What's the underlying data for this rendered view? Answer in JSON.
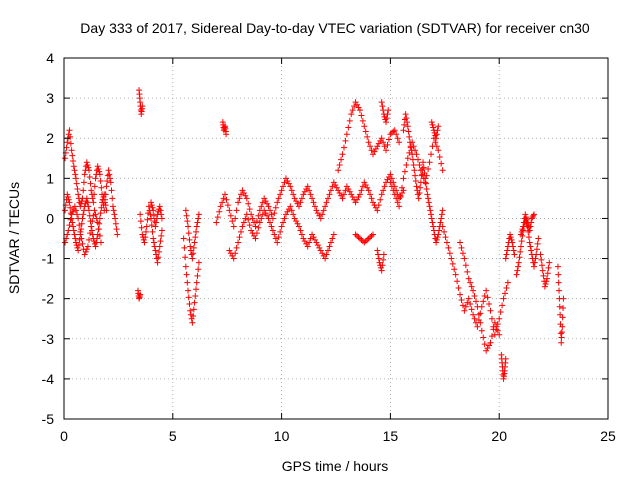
{
  "chart_data": {
    "type": "scatter",
    "title": "Day 333 of 2017, Sidereal Day-to-day VTEC variation (SDTVAR) for receiver cn30",
    "xlabel": "GPS time / hours",
    "ylabel": "SDTVAR / TECUs",
    "xlim": [
      0,
      25
    ],
    "ylim": [
      -5,
      4
    ],
    "xticks": [
      "0",
      "5",
      "10",
      "15",
      "20",
      "25"
    ],
    "yticks": [
      "-5",
      "-4",
      "-3",
      "-2",
      "-1",
      "0",
      "1",
      "2",
      "3",
      "4"
    ],
    "grid": true,
    "marker": "plus",
    "color": "#ff0000",
    "series": [
      {
        "name": "SDTVAR",
        "segments": [
          {
            "x": [
              0.05,
              0.15,
              0.25,
              0.35,
              0.45,
              0.55,
              0.65,
              0.75,
              0.85,
              0.95,
              1.05,
              1.15,
              1.25,
              1.35,
              1.45,
              1.55,
              1.65,
              1.75,
              1.85,
              1.95,
              2.05,
              2.15,
              2.25,
              2.35,
              2.45
            ],
            "y": [
              1.5,
              1.9,
              2.2,
              1.7,
              1.3,
              1.0,
              0.6,
              0.3,
              0.5,
              1.1,
              1.4,
              1.2,
              0.7,
              0.4,
              1.0,
              1.3,
              1.1,
              0.6,
              0.2,
              0.8,
              1.2,
              0.9,
              0.3,
              0.0,
              -0.4
            ]
          },
          {
            "x": [
              0.05,
              0.15,
              0.25,
              0.35,
              0.45,
              0.55,
              0.65,
              0.75,
              0.85,
              0.95,
              1.05,
              1.15,
              1.25,
              1.35,
              1.45,
              1.55,
              1.65,
              1.75,
              1.85,
              1.95
            ],
            "y": [
              0.2,
              0.6,
              0.4,
              0.0,
              -0.3,
              -0.6,
              -0.8,
              -0.4,
              0.0,
              0.3,
              0.5,
              0.2,
              -0.2,
              -0.5,
              -0.7,
              -0.4,
              0.0,
              0.4,
              0.6,
              0.2
            ]
          },
          {
            "x": [
              0.05,
              0.2,
              0.35,
              0.5,
              0.65,
              0.8,
              0.95,
              1.1,
              1.25,
              1.4,
              1.55,
              1.7
            ],
            "y": [
              -0.6,
              -0.3,
              0.1,
              0.3,
              0.0,
              -0.5,
              -0.9,
              -0.7,
              -0.2,
              0.2,
              -0.1,
              -0.6
            ]
          },
          {
            "x": [
              3.45,
              3.5,
              3.55,
              3.6
            ],
            "y": [
              3.2,
              2.9,
              2.6,
              2.8
            ]
          },
          {
            "x": [
              3.4,
              3.45,
              3.5
            ],
            "y": [
              -1.8,
              -2.0,
              -1.9
            ]
          },
          {
            "x": [
              3.5,
              3.6,
              3.7,
              3.8,
              3.9,
              4.0,
              4.1,
              4.2,
              4.3,
              4.4,
              4.5
            ],
            "y": [
              0.1,
              -0.4,
              -0.6,
              -0.2,
              0.3,
              0.0,
              -0.5,
              -0.8,
              -1.1,
              -0.7,
              -0.3
            ]
          },
          {
            "x": [
              4.0,
              4.1,
              4.2,
              4.3,
              4.4,
              4.5
            ],
            "y": [
              0.4,
              0.2,
              -0.2,
              0.1,
              0.3,
              0.0
            ]
          },
          {
            "x": [
              5.5,
              5.6,
              5.7,
              5.8,
              5.9,
              6.0,
              6.1,
              6.2
            ],
            "y": [
              -0.5,
              -1.2,
              -1.8,
              -2.3,
              -2.6,
              -2.1,
              -1.6,
              -1.1
            ]
          },
          {
            "x": [
              5.6,
              5.7,
              5.8,
              5.9,
              6.0,
              6.1,
              6.2
            ],
            "y": [
              0.2,
              -0.2,
              -0.7,
              -1.0,
              -0.6,
              -0.2,
              0.1
            ]
          },
          {
            "x": [
              7.3,
              7.35,
              7.4,
              7.45
            ],
            "y": [
              2.4,
              2.2,
              2.3,
              2.1
            ]
          },
          {
            "x": [
              7.0,
              7.2,
              7.4,
              7.6,
              7.8,
              8.0,
              8.2,
              8.4,
              8.6,
              8.8,
              9.0,
              9.2,
              9.4,
              9.6,
              9.8,
              10.0,
              10.2,
              10.4,
              10.6,
              10.8,
              11.0,
              11.2,
              11.4,
              11.6,
              11.8,
              12.0,
              12.2,
              12.4,
              12.6,
              12.8,
              13.0,
              13.2,
              13.4,
              13.6,
              13.8,
              14.0,
              14.2,
              14.4,
              14.6,
              14.8,
              15.0,
              15.2,
              15.4,
              15.6
            ],
            "y": [
              -0.1,
              0.3,
              0.6,
              0.2,
              -0.2,
              0.4,
              0.7,
              0.5,
              0.1,
              -0.2,
              0.2,
              0.5,
              0.3,
              0.0,
              0.4,
              0.7,
              1.0,
              0.8,
              0.5,
              0.3,
              0.6,
              0.8,
              0.5,
              0.2,
              0.0,
              0.3,
              0.6,
              0.9,
              0.7,
              0.5,
              0.8,
              0.6,
              0.4,
              0.6,
              0.9,
              0.7,
              0.4,
              0.2,
              0.6,
              0.9,
              1.1,
              0.8,
              0.5,
              0.7
            ]
          },
          {
            "x": [
              7.6,
              7.8,
              8.0,
              8.2,
              8.4,
              8.6,
              8.8,
              9.0,
              9.2,
              9.4,
              9.6,
              9.8,
              10.0,
              10.2,
              10.4,
              10.6,
              10.8,
              11.0,
              11.2,
              11.4,
              11.6,
              11.8,
              12.0,
              12.2,
              12.4
            ],
            "y": [
              -0.8,
              -1.0,
              -0.6,
              -0.2,
              0.1,
              -0.3,
              -0.5,
              -0.1,
              0.2,
              0.0,
              -0.3,
              -0.6,
              -0.2,
              0.1,
              0.3,
              0.0,
              -0.2,
              -0.5,
              -0.7,
              -0.4,
              -0.6,
              -0.8,
              -1.0,
              -0.7,
              -0.4
            ]
          },
          {
            "x": [
              12.6,
              12.8,
              13.0,
              13.2,
              13.4,
              13.6,
              13.8,
              14.0,
              14.2,
              14.4,
              14.6,
              14.8,
              15.0,
              15.2,
              15.4
            ],
            "y": [
              1.2,
              1.6,
              2.1,
              2.6,
              2.9,
              2.7,
              2.3,
              1.9,
              1.6,
              1.8,
              2.0,
              1.7,
              2.1,
              2.2,
              1.9
            ]
          },
          {
            "x": [
              14.6,
              14.7,
              14.8,
              14.9
            ],
            "y": [
              2.9,
              2.6,
              2.4,
              2.7
            ]
          },
          {
            "x": [
              13.4,
              13.6,
              13.8,
              14.0,
              14.2
            ],
            "y": [
              -0.4,
              -0.5,
              -0.6,
              -0.5,
              -0.4
            ]
          },
          {
            "x": [
              14.4,
              14.5,
              14.6,
              14.7
            ],
            "y": [
              -0.8,
              -1.1,
              -1.3,
              -0.9
            ]
          },
          {
            "x": [
              15.0,
              15.2,
              15.4,
              15.6,
              15.8,
              16.0,
              16.2,
              16.4,
              16.6,
              16.8,
              17.0,
              17.2,
              17.4
            ],
            "y": [
              0.9,
              0.6,
              0.3,
              1.0,
              1.5,
              1.9,
              1.6,
              1.2,
              0.9,
              1.4,
              2.0,
              1.7,
              1.2
            ]
          },
          {
            "x": [
              15.6,
              15.7,
              15.8,
              15.9,
              16.0,
              16.1,
              16.2,
              16.3,
              16.4,
              16.5,
              16.6,
              16.7,
              16.8,
              16.9,
              17.0,
              17.1,
              17.2,
              17.3,
              17.4
            ],
            "y": [
              2.2,
              2.6,
              2.3,
              1.9,
              1.6,
              1.2,
              0.8,
              0.5,
              0.9,
              1.4,
              1.0,
              0.6,
              0.3,
              0.0,
              -0.3,
              -0.6,
              -0.4,
              -0.1,
              0.2
            ]
          },
          {
            "x": [
              16.9,
              17.0,
              17.1,
              17.2
            ],
            "y": [
              2.4,
              2.2,
              2.0,
              2.3
            ]
          },
          {
            "x": [
              17.4,
              17.6,
              17.8,
              18.0,
              18.2,
              18.4,
              18.6,
              18.8,
              19.0,
              19.2,
              19.4,
              19.6,
              19.8,
              20.0,
              20.2,
              20.4
            ],
            "y": [
              -0.2,
              -0.6,
              -1.0,
              -1.4,
              -1.9,
              -2.3,
              -2.0,
              -2.4,
              -2.7,
              -2.2,
              -1.8,
              -2.3,
              -2.9,
              -2.5,
              -2.0,
              -1.6
            ]
          },
          {
            "x": [
              18.2,
              18.4,
              18.6,
              18.8,
              19.0,
              19.2,
              19.4,
              19.6,
              19.8,
              20.0
            ],
            "y": [
              -0.6,
              -1.0,
              -1.5,
              -1.8,
              -2.2,
              -2.8,
              -3.3,
              -3.1,
              -2.6,
              -2.9
            ]
          },
          {
            "x": [
              20.1,
              20.15,
              20.2,
              20.25,
              20.3
            ],
            "y": [
              -3.4,
              -3.7,
              -4.0,
              -3.8,
              -3.5
            ]
          },
          {
            "x": [
              20.3,
              20.4,
              20.5,
              20.6,
              20.7
            ],
            "y": [
              -1.0,
              -0.7,
              -0.4,
              -0.6,
              -0.9
            ]
          },
          {
            "x": [
              20.8,
              20.9,
              21.0,
              21.1,
              21.2,
              21.3,
              21.4,
              21.5,
              21.6,
              21.7,
              21.8
            ],
            "y": [
              -1.4,
              -1.1,
              -0.7,
              -0.3,
              0.0,
              -0.2,
              -0.6,
              -0.9,
              -1.2,
              -0.9,
              -0.5
            ]
          },
          {
            "x": [
              21.0,
              21.1,
              21.2,
              21.3,
              21.4,
              21.5,
              21.6
            ],
            "y": [
              -0.4,
              -0.2,
              0.1,
              -0.1,
              -0.3,
              0.0,
              0.1
            ]
          },
          {
            "x": [
              21.9,
              22.0,
              22.1,
              22.2,
              22.3
            ],
            "y": [
              -0.9,
              -1.3,
              -1.7,
              -1.5,
              -1.1
            ]
          },
          {
            "x": [
              22.7,
              22.75,
              22.8,
              22.85,
              22.9,
              22.95
            ],
            "y": [
              -1.2,
              -1.8,
              -2.4,
              -3.1,
              -2.7,
              -2.0
            ]
          }
        ]
      }
    ]
  }
}
